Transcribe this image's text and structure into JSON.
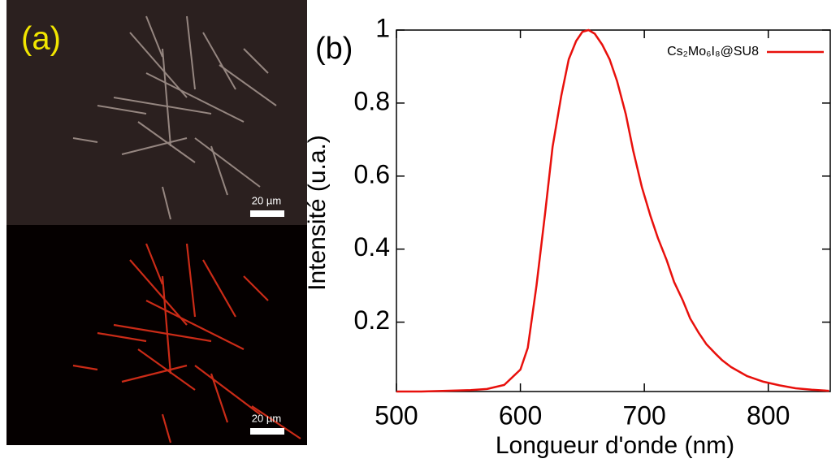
{
  "panel_a": {
    "label": "(a)",
    "scale_bars": [
      "20 µm",
      "20 µm"
    ]
  },
  "chart_data": {
    "type": "line",
    "panel_label": "(b)",
    "x_label": "Longueur d'onde (nm)",
    "y_label": "Intensité (u.a.)",
    "x": [
      500,
      520,
      540,
      560,
      573,
      587,
      600,
      606,
      613,
      620,
      626,
      633,
      639,
      645,
      650,
      655,
      660,
      666,
      672,
      678,
      685,
      691,
      698,
      705,
      711,
      718,
      724,
      731,
      737,
      744,
      750,
      757,
      763,
      770,
      783,
      796,
      809,
      822,
      835,
      849
    ],
    "series": [
      {
        "name": "Cs₂Mo₆I₈@SU8",
        "color": "#e8100c",
        "values": [
          0.01,
          0.01,
          0.012,
          0.014,
          0.017,
          0.028,
          0.07,
          0.13,
          0.3,
          0.5,
          0.68,
          0.82,
          0.92,
          0.97,
          0.995,
          1.0,
          0.99,
          0.96,
          0.92,
          0.86,
          0.77,
          0.67,
          0.57,
          0.49,
          0.43,
          0.37,
          0.31,
          0.26,
          0.21,
          0.17,
          0.14,
          0.115,
          0.095,
          0.077,
          0.052,
          0.037,
          0.027,
          0.019,
          0.015,
          0.012
        ]
      }
    ],
    "xlim": [
      500,
      850
    ],
    "ylim": [
      0.01,
      1
    ],
    "xticks": [
      500,
      600,
      700,
      800
    ],
    "yticks": [
      0.2,
      0.4,
      0.6,
      0.8,
      1
    ],
    "legend": "upper right"
  }
}
